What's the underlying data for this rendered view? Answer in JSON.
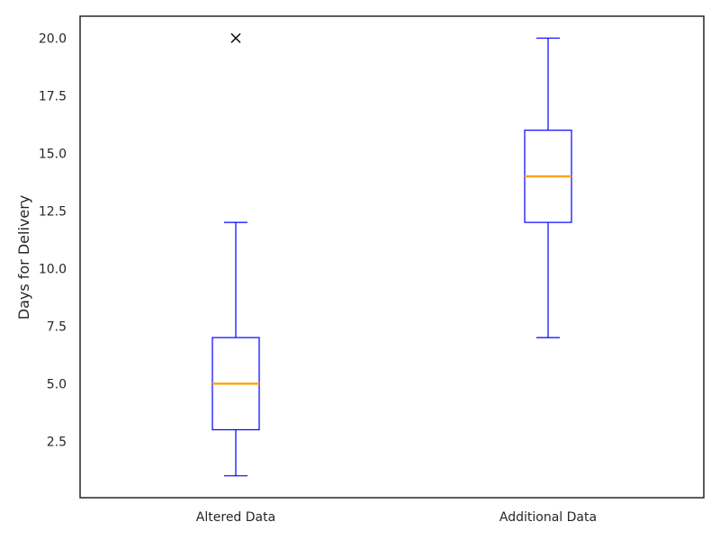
{
  "chart_data": {
    "type": "boxplot",
    "title": "",
    "xlabel": "",
    "ylabel": "Days for Delivery",
    "ylim": [
      0.05,
      20.95
    ],
    "yticks": [
      2.5,
      5.0,
      7.5,
      10.0,
      12.5,
      15.0,
      17.5,
      20.0
    ],
    "ytick_labels": [
      "2.5",
      "5.0",
      "7.5",
      "10.0",
      "12.5",
      "15.0",
      "17.5",
      "20.0"
    ],
    "grid": false,
    "colors": {
      "box": "#0000ff",
      "median": "#ffa500",
      "flier": "#000000",
      "frame": "#262626"
    },
    "categories": [
      "Altered Data",
      "Additional Data"
    ],
    "boxes": [
      {
        "name": "Altered Data",
        "whisker_low": 1,
        "q1": 3,
        "median": 5,
        "q3": 7,
        "whisker_high": 12,
        "outliers": [
          20
        ]
      },
      {
        "name": "Additional Data",
        "whisker_low": 7,
        "q1": 12,
        "median": 14,
        "q3": 16,
        "whisker_high": 20,
        "outliers": []
      }
    ]
  }
}
